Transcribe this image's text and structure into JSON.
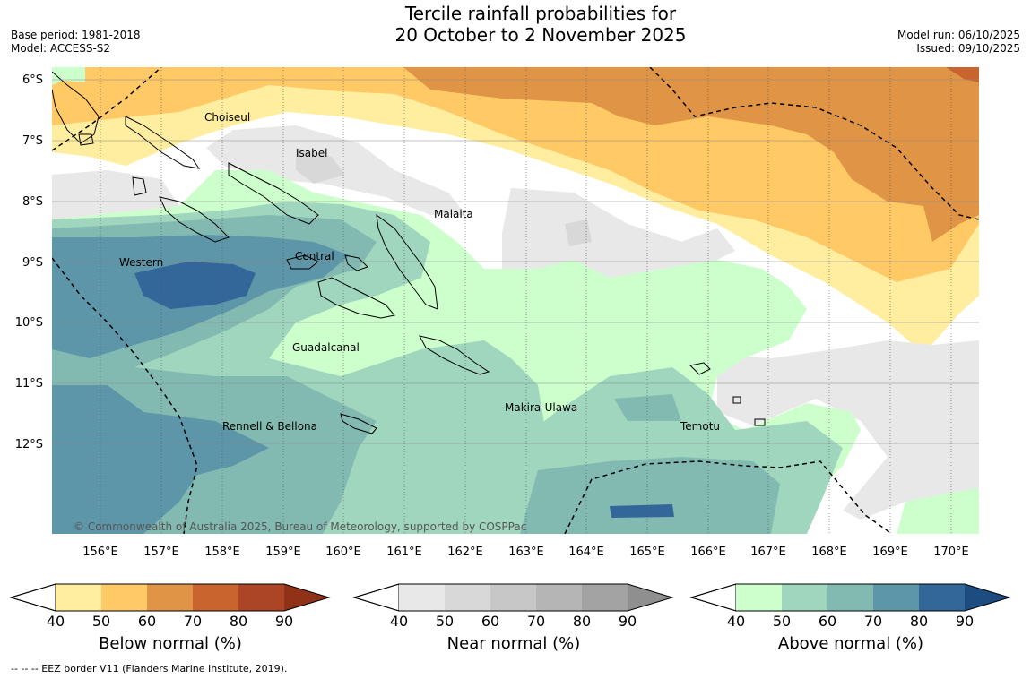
{
  "title_line1": "Tercile rainfall probabilities for",
  "title_line2": "20 October to 2 November 2025",
  "base_period": "Base period: 1981-2018",
  "model": "Model: ACCESS-S2",
  "model_run": "Model run: 06/10/2025",
  "issued": "Issued: 09/10/2025",
  "map": {
    "lat_labels": [
      "6°S",
      "7°S",
      "8°S",
      "9°S",
      "10°S",
      "11°S",
      "12°S"
    ],
    "lon_labels": [
      "156°E",
      "157°E",
      "158°E",
      "159°E",
      "160°E",
      "161°E",
      "162°E",
      "163°E",
      "164°E",
      "165°E",
      "166°E",
      "167°E",
      "168°E",
      "169°E",
      "170°E"
    ],
    "regions": {
      "choiseul": "Choiseul",
      "isabel": "Isabel",
      "malaita": "Malaita",
      "western": "Western",
      "central": "Central",
      "guadalcanal": "Guadalcanal",
      "makira": "Makira-Ulawa",
      "temotu": "Temotu",
      "rennell": "Rennell & Bellona"
    },
    "copyright": "© Commonwealth of Australia 2025, Bureau of Meteorology, supported by COSPPac"
  },
  "colorbars": {
    "ticks": [
      "40",
      "50",
      "60",
      "70",
      "80",
      "90"
    ],
    "below": {
      "title": "Below normal (%)",
      "colors": [
        "#ffeea0",
        "#ffc966",
        "#e09445",
        "#c9642e",
        "#ac4526",
        "#8f3218"
      ]
    },
    "near": {
      "title": "Near normal (%)",
      "colors": [
        "#e8e8e8",
        "#d8d8d8",
        "#c7c7c7",
        "#b5b5b5",
        "#a3a3a3",
        "#8f8f8f"
      ]
    },
    "above": {
      "title": "Above normal (%)",
      "colors": [
        "#ccffcc",
        "#a0d6bd",
        "#82bab2",
        "#5d96a8",
        "#336699",
        "#1c4c80"
      ]
    }
  },
  "footer": "--  --  -- EEZ border V11 (Flanders Marine Institute, 2019)."
}
